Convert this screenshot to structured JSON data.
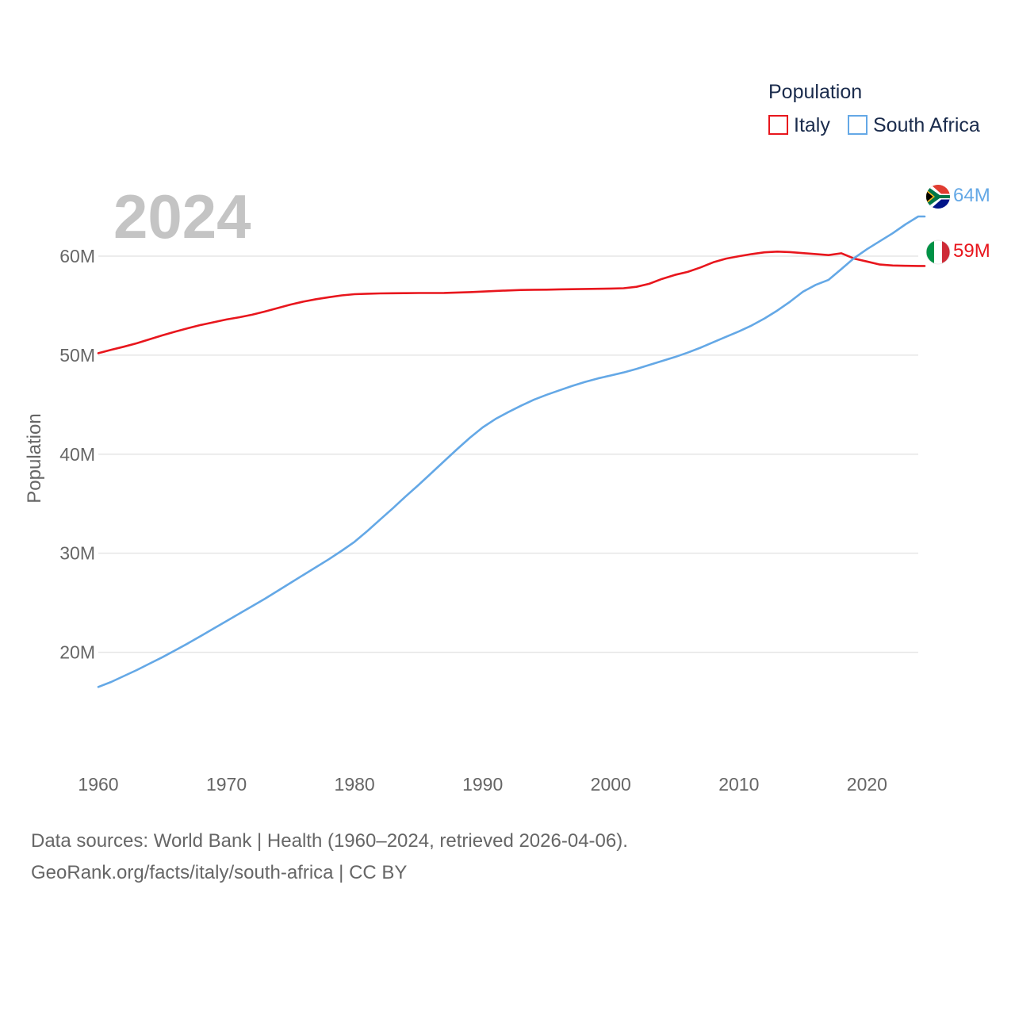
{
  "chart_data": {
    "type": "line",
    "title": "",
    "xlabel": "",
    "ylabel": "Population",
    "year_label": "2024",
    "xlim": [
      1960,
      2024
    ],
    "ylim": [
      13000000,
      66000000
    ],
    "x_ticks": [
      1960,
      1970,
      1980,
      1990,
      2000,
      2010,
      2020
    ],
    "y_ticks": [
      {
        "value": 20000000,
        "label": "20M"
      },
      {
        "value": 30000000,
        "label": "30M"
      },
      {
        "value": 40000000,
        "label": "40M"
      },
      {
        "value": 50000000,
        "label": "50M"
      },
      {
        "value": 60000000,
        "label": "60M"
      }
    ],
    "legend": {
      "title": "Population",
      "position": "top-right",
      "items": [
        {
          "label": "Italy",
          "color": "#e8161d"
        },
        {
          "label": "South Africa",
          "color": "#64a8e6"
        }
      ]
    },
    "x": [
      1960,
      1961,
      1962,
      1963,
      1964,
      1965,
      1966,
      1967,
      1968,
      1969,
      1970,
      1971,
      1972,
      1973,
      1974,
      1975,
      1976,
      1977,
      1978,
      1979,
      1980,
      1981,
      1982,
      1983,
      1984,
      1985,
      1986,
      1987,
      1988,
      1989,
      1990,
      1991,
      1992,
      1993,
      1994,
      1995,
      1996,
      1997,
      1998,
      1999,
      2000,
      2001,
      2002,
      2003,
      2004,
      2005,
      2006,
      2007,
      2008,
      2009,
      2010,
      2011,
      2012,
      2013,
      2014,
      2015,
      2016,
      2017,
      2018,
      2019,
      2020,
      2021,
      2022,
      2023,
      2024
    ],
    "series": [
      {
        "name": "Italy",
        "color": "#e8161d",
        "end_label": "59M",
        "flag": "italy-flag",
        "values": [
          50200000,
          50540000,
          50850000,
          51200000,
          51600000,
          52000000,
          52370000,
          52720000,
          53050000,
          53320000,
          53600000,
          53820000,
          54080000,
          54400000,
          54750000,
          55100000,
          55400000,
          55650000,
          55850000,
          56030000,
          56150000,
          56200000,
          56230000,
          56250000,
          56260000,
          56270000,
          56270000,
          56280000,
          56320000,
          56360000,
          56420000,
          56480000,
          56530000,
          56580000,
          56600000,
          56610000,
          56640000,
          56660000,
          56680000,
          56700000,
          56720000,
          56750000,
          56900000,
          57200000,
          57700000,
          58100000,
          58400000,
          58850000,
          59370000,
          59750000,
          59990000,
          60200000,
          60380000,
          60450000,
          60400000,
          60300000,
          60200000,
          60100000,
          60280000,
          59750000,
          59450000,
          59150000,
          59050000,
          59020000,
          59000000
        ]
      },
      {
        "name": "South Africa",
        "color": "#64a8e6",
        "end_label": "64M",
        "flag": "south-africa-flag",
        "values": [
          16500000,
          17000000,
          17600000,
          18200000,
          18850000,
          19500000,
          20200000,
          20900000,
          21650000,
          22400000,
          23150000,
          23900000,
          24650000,
          25400000,
          26200000,
          27000000,
          27800000,
          28600000,
          29400000,
          30250000,
          31150000,
          32250000,
          33400000,
          34550000,
          35750000,
          36900000,
          38100000,
          39300000,
          40500000,
          41650000,
          42700000,
          43550000,
          44250000,
          44900000,
          45500000,
          46000000,
          46450000,
          46900000,
          47300000,
          47650000,
          47950000,
          48250000,
          48600000,
          49000000,
          49400000,
          49800000,
          50250000,
          50750000,
          51300000,
          51850000,
          52400000,
          53000000,
          53700000,
          54500000,
          55400000,
          56400000,
          57100000,
          57600000,
          58700000,
          59800000,
          60700000,
          61500000,
          62300000,
          63200000,
          64000000
        ]
      }
    ]
  },
  "sources": {
    "line1": "Data sources: World Bank | Health (1960–2024, retrieved 2026-04-06).",
    "line2": "GeoRank.org/facts/italy/south-africa | CC BY"
  }
}
